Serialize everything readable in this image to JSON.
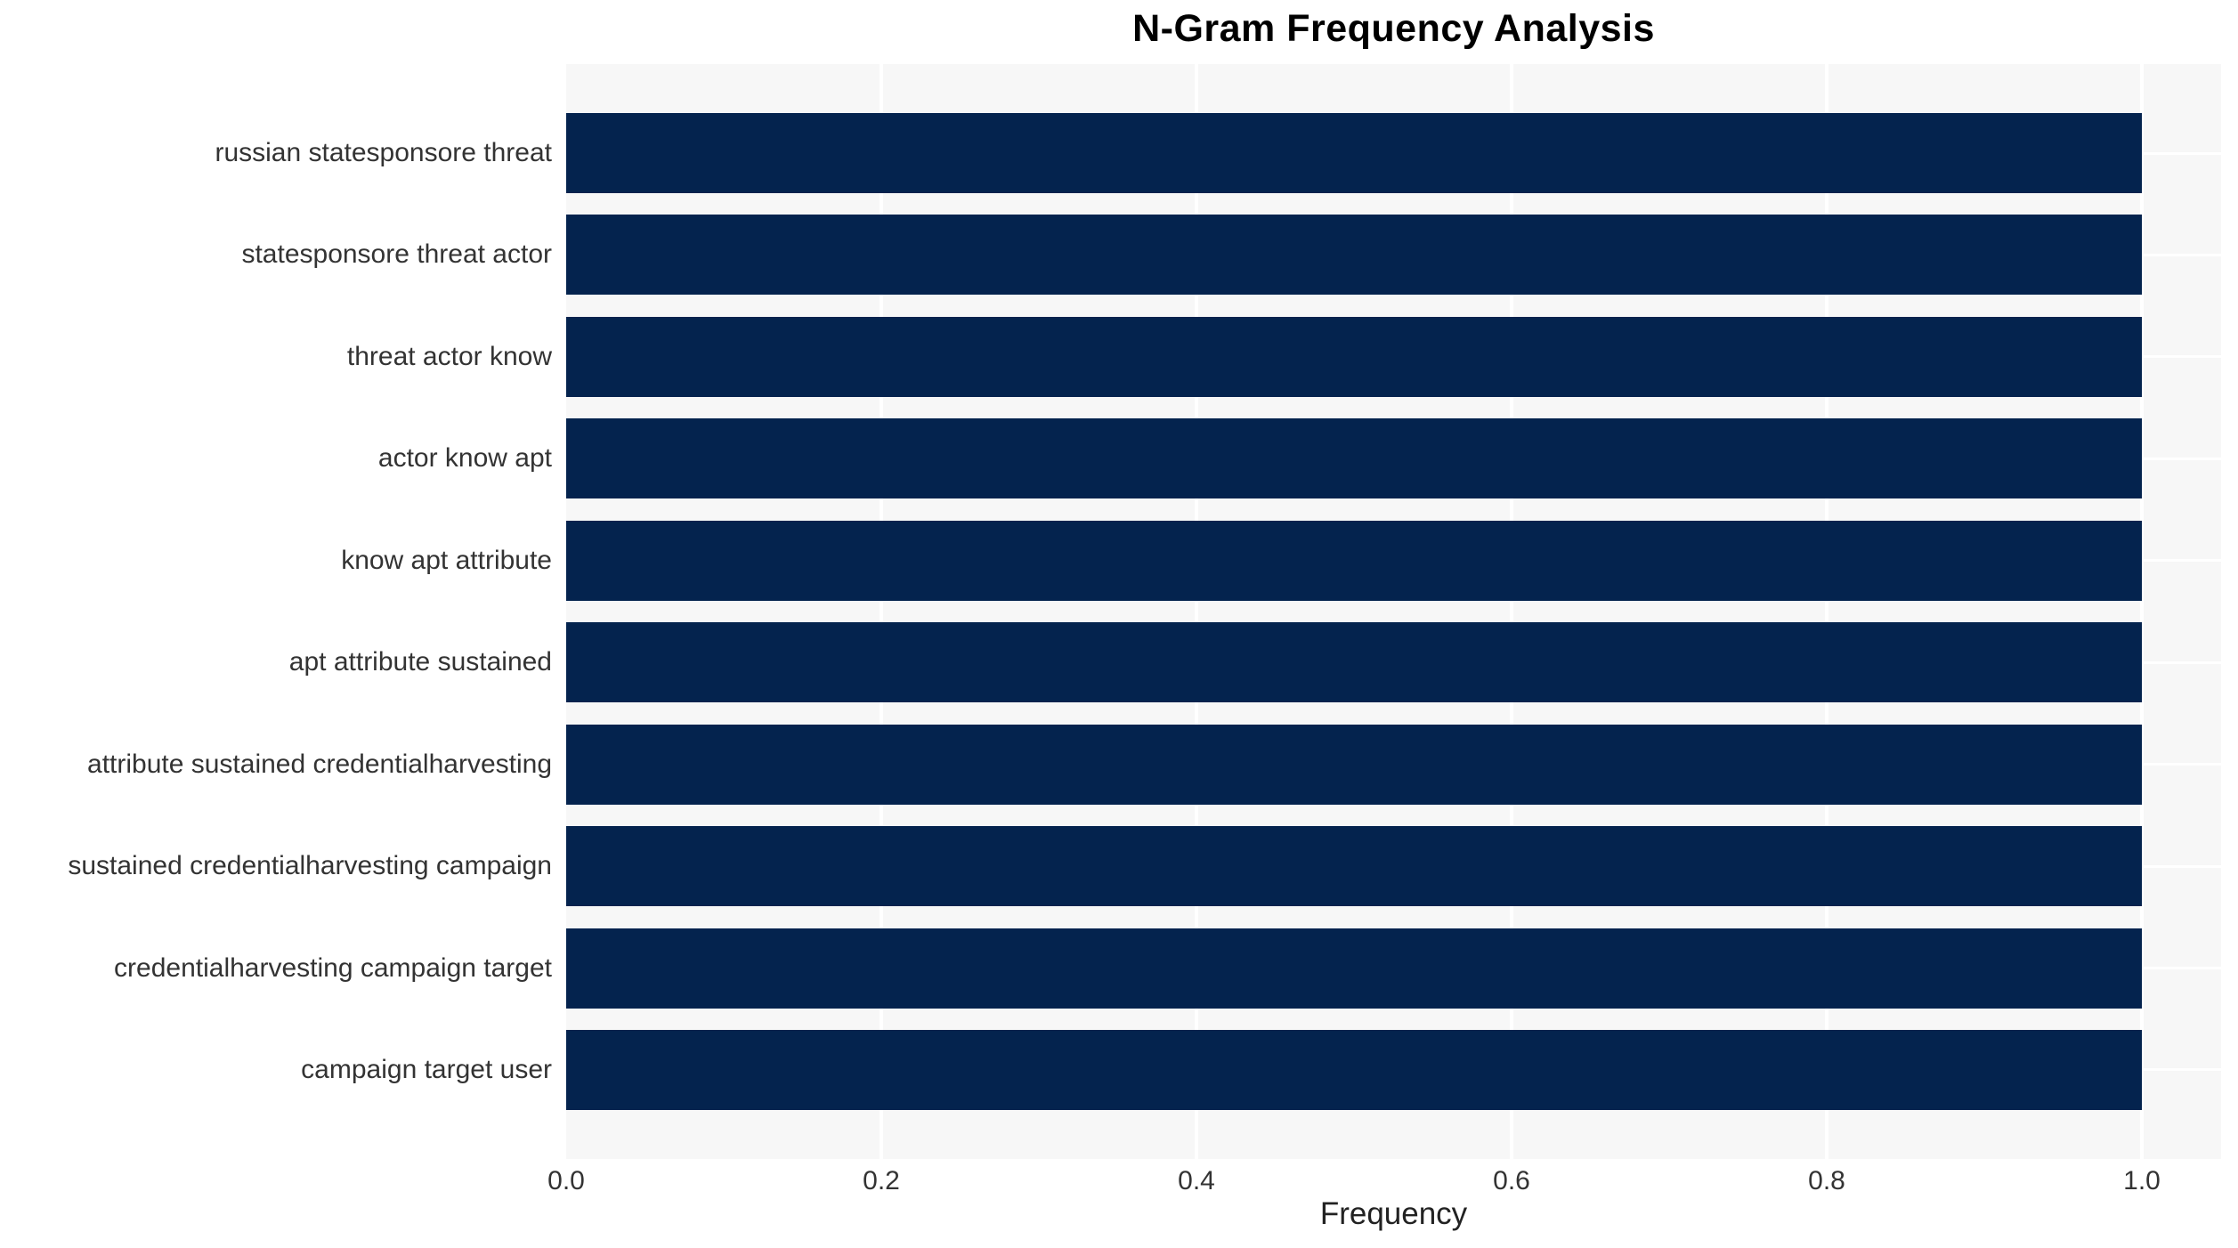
{
  "chart_data": {
    "type": "bar",
    "orientation": "horizontal",
    "title": "N-Gram Frequency Analysis",
    "xlabel": "Frequency",
    "ylabel": "",
    "categories": [
      "russian statesponsore threat",
      "statesponsore threat actor",
      "threat actor know",
      "actor know apt",
      "know apt attribute",
      "apt attribute sustained",
      "attribute sustained credentialharvesting",
      "sustained credentialharvesting campaign",
      "credentialharvesting campaign target",
      "campaign target user"
    ],
    "values": [
      1.0,
      1.0,
      1.0,
      1.0,
      1.0,
      1.0,
      1.0,
      1.0,
      1.0,
      1.0
    ],
    "x_ticks": [
      0.0,
      0.2,
      0.4,
      0.6,
      0.8,
      1.0
    ],
    "xlim": [
      0,
      1.05
    ],
    "grid": true,
    "legend_position": "none",
    "colors": {
      "bar": "#04234e",
      "plot_background": "#f7f7f7",
      "gridline": "#ffffff",
      "tick_text": "#333333",
      "title_text": "#000000"
    }
  }
}
